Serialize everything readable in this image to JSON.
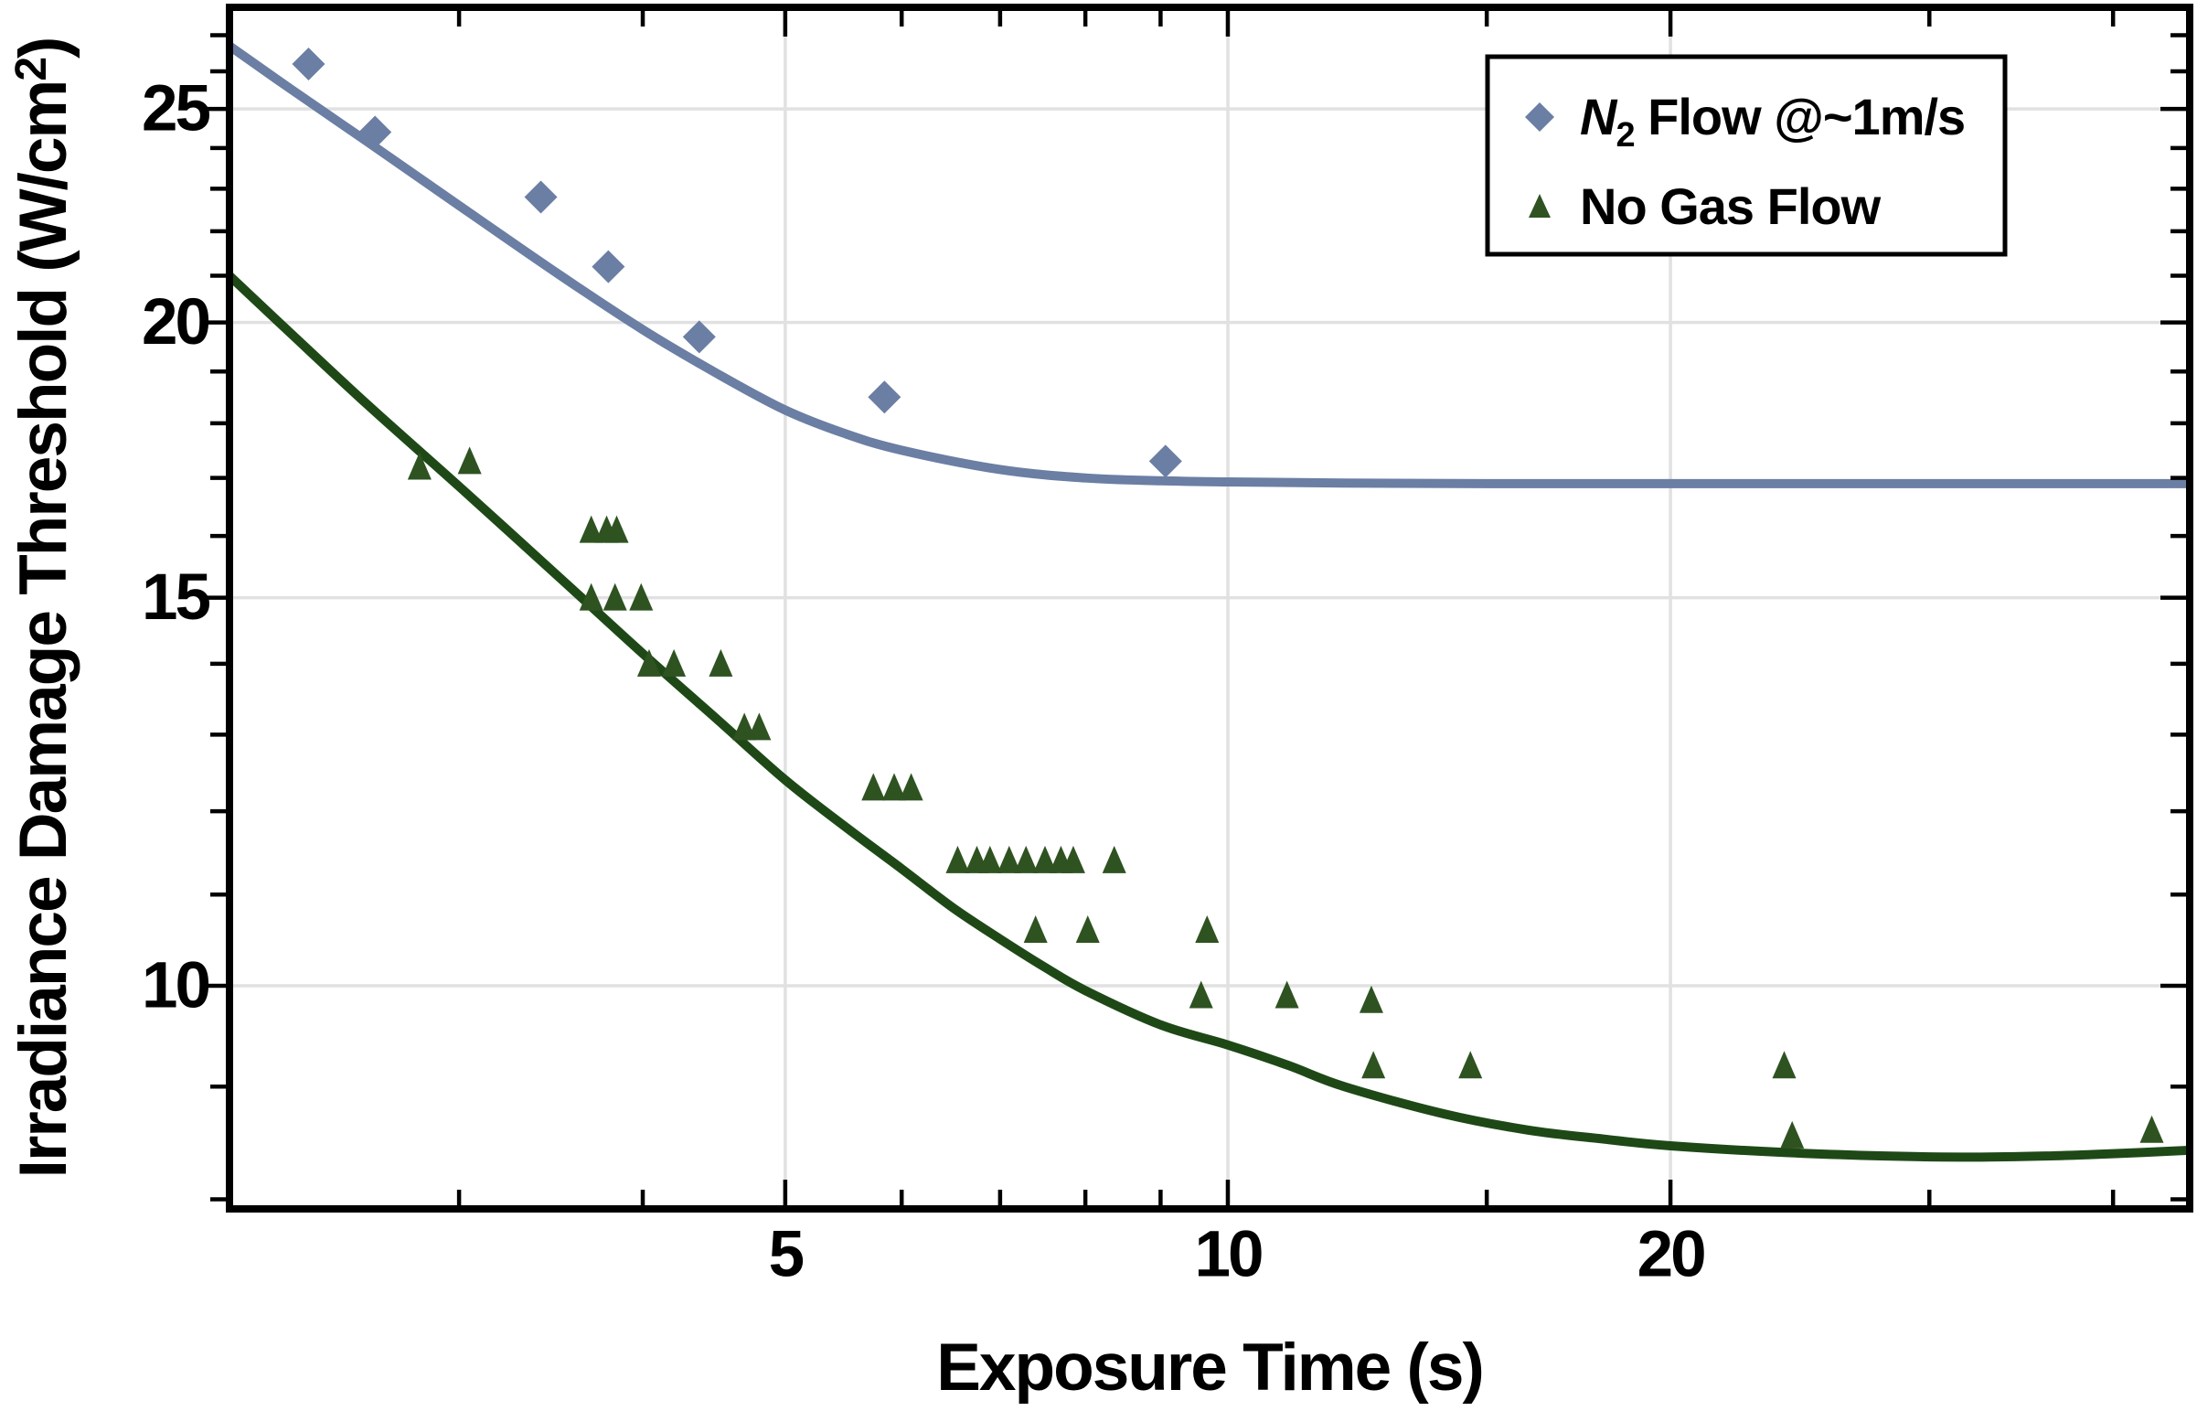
{
  "figure": {
    "background": "#ffffff",
    "frame_color": "#000000",
    "grid_color": "#e1e1e1",
    "text_color": "#000000"
  },
  "chart_data": {
    "type": "scatter",
    "title": "",
    "xlabel": "Exposure Time (s)",
    "ylabel": "Irradiance Damage Threshold (W/cm²)",
    "ylabel_parts": {
      "main": "Irradiance Damage Threshold (W/cm",
      "sup": "2",
      "close": ")"
    },
    "x_scale": "log",
    "y_scale": "log",
    "xlim": [
      2.094,
      45.1
    ],
    "ylim": [
      7.92,
      27.8
    ],
    "grid": "major-only",
    "x_major_ticks": [
      5,
      10,
      20
    ],
    "x_major_labels": [
      "5",
      "10",
      "20"
    ],
    "x_minor_ticks": [
      3,
      4,
      6,
      7,
      8,
      9,
      15,
      30,
      40
    ],
    "y_major_ticks": [
      10,
      15,
      20,
      25
    ],
    "y_major_labels": [
      "10",
      "15",
      "20",
      "25"
    ],
    "y_minor_ticks": [
      8,
      9,
      11,
      12,
      13,
      14,
      16,
      17,
      18,
      19,
      21,
      22,
      23,
      24,
      26,
      27
    ],
    "legend_position": "top-right",
    "series": [
      {
        "name": "N2 Flow @~1m/s",
        "label_parts": {
          "italic": "N",
          "sub": "2",
          "rest": " Flow @~1m/s"
        },
        "marker": "diamond",
        "color": "#6b7ea3",
        "curve_color": "#6b7ea3",
        "points": [
          [
            2.37,
            26.2
          ],
          [
            2.63,
            24.4
          ],
          [
            3.41,
            22.8
          ],
          [
            3.79,
            21.2
          ],
          [
            4.37,
            19.7
          ],
          [
            5.84,
            18.5
          ],
          [
            9.07,
            17.3
          ]
        ],
        "fit_curve": [
          [
            2.094,
            26.7
          ],
          [
            2.3,
            25.55
          ],
          [
            2.6,
            24.15
          ],
          [
            3.0,
            22.6
          ],
          [
            3.5,
            21.05
          ],
          [
            4.0,
            19.85
          ],
          [
            4.5,
            18.95
          ],
          [
            5.0,
            18.25
          ],
          [
            5.5,
            17.8
          ],
          [
            6.0,
            17.5
          ],
          [
            7.0,
            17.15
          ],
          [
            8.0,
            17.0
          ],
          [
            9.0,
            16.95
          ],
          [
            10,
            16.93
          ],
          [
            12,
            16.91
          ],
          [
            15,
            16.9
          ],
          [
            20,
            16.9
          ],
          [
            30,
            16.9
          ],
          [
            45,
            16.9
          ]
        ]
      },
      {
        "name": "No Gas Flow",
        "label_parts": {
          "italic": "",
          "sub": "",
          "rest": "No Gas Flow"
        },
        "marker": "triangle",
        "color": "#2e5321",
        "curve_color": "#1e4917",
        "points": [
          [
            2.82,
            17.2
          ],
          [
            3.05,
            17.3
          ],
          [
            3.69,
            16.1
          ],
          [
            3.78,
            16.1
          ],
          [
            3.84,
            16.1
          ],
          [
            3.69,
            15.0
          ],
          [
            3.83,
            15.0
          ],
          [
            3.99,
            15.0
          ],
          [
            4.04,
            14.0
          ],
          [
            4.2,
            14.0
          ],
          [
            4.52,
            14.0
          ],
          [
            4.69,
            13.1
          ],
          [
            4.8,
            13.1
          ],
          [
            5.74,
            12.3
          ],
          [
            5.93,
            12.3
          ],
          [
            6.09,
            12.3
          ],
          [
            6.55,
            11.4
          ],
          [
            6.75,
            11.4
          ],
          [
            6.89,
            11.4
          ],
          [
            7.1,
            11.4
          ],
          [
            7.29,
            11.4
          ],
          [
            7.51,
            11.4
          ],
          [
            7.7,
            11.4
          ],
          [
            7.85,
            11.4
          ],
          [
            8.37,
            11.4
          ],
          [
            7.4,
            10.6
          ],
          [
            8.03,
            10.6
          ],
          [
            9.68,
            10.6
          ],
          [
            9.59,
            9.9
          ],
          [
            10.97,
            9.9
          ],
          [
            12.52,
            9.85
          ],
          [
            12.56,
            9.2
          ],
          [
            14.62,
            9.2
          ],
          [
            23.9,
            9.2
          ],
          [
            24.2,
            8.55
          ],
          [
            42.5,
            8.6
          ]
        ],
        "fit_curve": [
          [
            2.094,
            21.0
          ],
          [
            2.3,
            19.8
          ],
          [
            2.6,
            18.35
          ],
          [
            3.0,
            16.85
          ],
          [
            3.5,
            15.35
          ],
          [
            4.0,
            14.15
          ],
          [
            4.5,
            13.2
          ],
          [
            5.0,
            12.4
          ],
          [
            5.5,
            11.8
          ],
          [
            6.0,
            11.3
          ],
          [
            6.5,
            10.85
          ],
          [
            7.0,
            10.5
          ],
          [
            7.5,
            10.2
          ],
          [
            8.0,
            9.95
          ],
          [
            9.0,
            9.6
          ],
          [
            10.0,
            9.4
          ],
          [
            11,
            9.2
          ],
          [
            12,
            9.0
          ],
          [
            14,
            8.75
          ],
          [
            16,
            8.6
          ],
          [
            18,
            8.52
          ],
          [
            20,
            8.46
          ],
          [
            24,
            8.4
          ],
          [
            28,
            8.37
          ],
          [
            32,
            8.36
          ],
          [
            36,
            8.37
          ],
          [
            40,
            8.39
          ],
          [
            45,
            8.42
          ]
        ]
      }
    ]
  }
}
